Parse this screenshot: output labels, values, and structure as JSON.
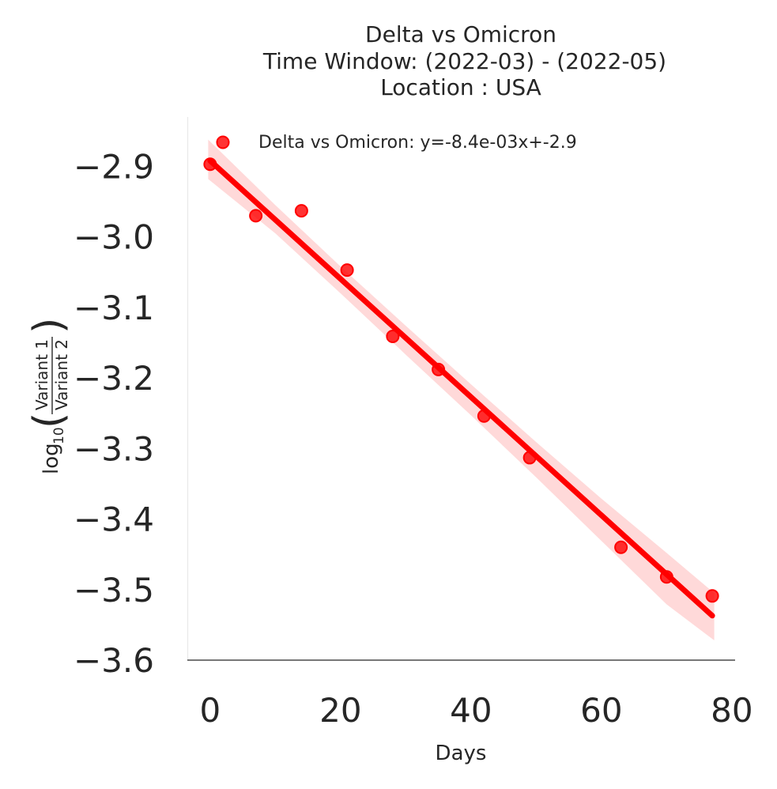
{
  "chart_data": {
    "type": "scatter",
    "title_lines": [
      "Delta vs Omicron",
      "Time Window: (2022-03) - (2022-05)",
      "Location : USA"
    ],
    "xlabel": "Days",
    "ylabel": {
      "prefix": "log",
      "base": "10",
      "numerator": "Variant 1",
      "denominator": "Variant 2"
    },
    "xlim": [
      -3.5,
      80.5
    ],
    "ylim": [
      -3.6,
      -2.83
    ],
    "xticks": [
      0,
      20,
      40,
      60,
      80
    ],
    "xtick_labels": [
      "0",
      "20",
      "40",
      "60",
      "80"
    ],
    "yticks": [
      -2.9,
      -3.0,
      -3.1,
      -3.2,
      -3.3,
      -3.4,
      -3.5,
      -3.6
    ],
    "ytick_labels": [
      "−2.9",
      "−3.0",
      "−3.1",
      "−3.2",
      "−3.3",
      "−3.4",
      "−3.5",
      "−3.6"
    ],
    "grid": false,
    "legend_position": "top-left",
    "series": [
      {
        "name": "Delta vs Omicron: y=-8.4e-03x+-2.9",
        "color": "#ff0000",
        "x": [
          0,
          7,
          14,
          21,
          28,
          35,
          42,
          49,
          63,
          70,
          77
        ],
        "y": [
          -2.897,
          -2.97,
          -2.963,
          -3.047,
          -3.141,
          -3.188,
          -3.254,
          -3.313,
          -3.44,
          -3.482,
          -3.509
        ]
      }
    ],
    "fit_line": {
      "x": [
        0,
        77
      ],
      "y": [
        -2.892,
        -3.537
      ]
    },
    "confidence_band": {
      "x": [
        -0.3,
        10,
        20,
        30,
        40,
        50,
        60,
        70,
        77.3
      ],
      "upper": [
        -2.862,
        -2.955,
        -3.042,
        -3.126,
        -3.209,
        -3.291,
        -3.371,
        -3.448,
        -3.505
      ],
      "lower": [
        -2.918,
        -2.995,
        -3.08,
        -3.167,
        -3.253,
        -3.341,
        -3.431,
        -3.521,
        -3.572
      ]
    }
  }
}
